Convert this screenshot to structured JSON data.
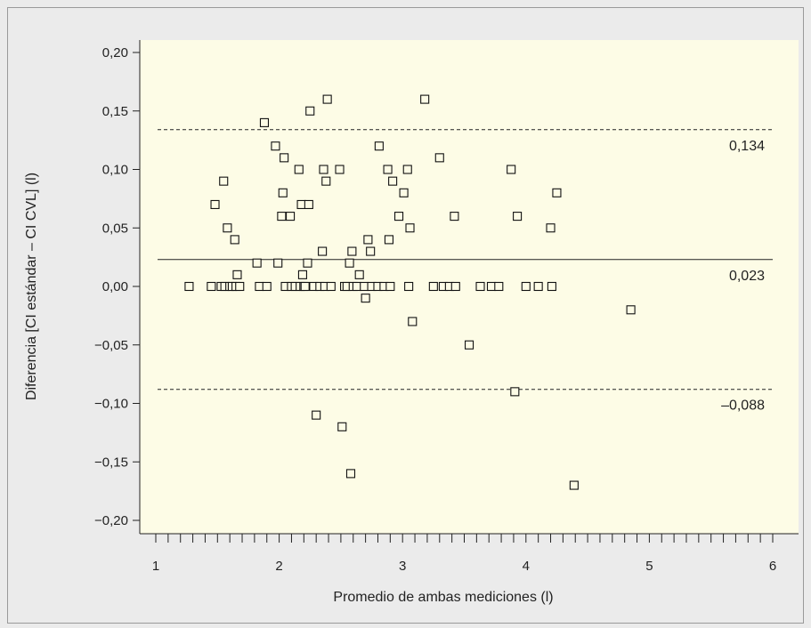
{
  "chart_data": {
    "type": "scatter",
    "title": "",
    "xlabel": "Promedio de ambas mediciones (l)",
    "ylabel": "Diferencia [CI estándar – CI CVL] (l)",
    "xlim": [
      1,
      6
    ],
    "ylim": [
      -0.21,
      0.21
    ],
    "xticks": [
      1,
      2,
      3,
      4,
      5,
      6
    ],
    "xtick_labels": [
      "1",
      "2",
      "3",
      "4",
      "5",
      "6"
    ],
    "yticks": [
      -0.2,
      -0.15,
      -0.1,
      -0.05,
      0.0,
      0.05,
      0.1,
      0.15,
      0.2
    ],
    "ytick_labels": [
      "−0,20",
      "−0,15",
      "−0,10",
      "−0,05",
      "0,00",
      "0,05",
      "0,10",
      "0,15",
      "0,20"
    ],
    "grid": false,
    "reference_lines": [
      {
        "value": 0.134,
        "label": "0,134",
        "style": "dashed"
      },
      {
        "value": 0.023,
        "label": "0,023",
        "style": "solid"
      },
      {
        "value": -0.088,
        "label": "–0,088",
        "style": "dashed"
      }
    ],
    "colors": {
      "plot_background": "#fdfce6",
      "frame_background": "#ebebeb",
      "marker_stroke": "#111111"
    },
    "points": [
      [
        1.27,
        0.0
      ],
      [
        1.45,
        0.0
      ],
      [
        1.48,
        0.07
      ],
      [
        1.53,
        0.0
      ],
      [
        1.55,
        0.09
      ],
      [
        1.56,
        0.0
      ],
      [
        1.58,
        0.05
      ],
      [
        1.6,
        0.0
      ],
      [
        1.62,
        0.0
      ],
      [
        1.64,
        0.04
      ],
      [
        1.65,
        0.0
      ],
      [
        1.66,
        0.01
      ],
      [
        1.68,
        0.0
      ],
      [
        1.82,
        0.02
      ],
      [
        1.84,
        0.0
      ],
      [
        1.88,
        0.14
      ],
      [
        1.9,
        0.0
      ],
      [
        1.97,
        0.12
      ],
      [
        1.99,
        0.02
      ],
      [
        2.02,
        0.06
      ],
      [
        2.03,
        0.08
      ],
      [
        2.04,
        0.11
      ],
      [
        2.05,
        0.0
      ],
      [
        2.09,
        0.06
      ],
      [
        2.1,
        0.0
      ],
      [
        2.13,
        0.0
      ],
      [
        2.16,
        0.1
      ],
      [
        2.17,
        0.0
      ],
      [
        2.18,
        0.07
      ],
      [
        2.19,
        0.01
      ],
      [
        2.2,
        0.0
      ],
      [
        2.21,
        0.0
      ],
      [
        2.23,
        0.02
      ],
      [
        2.24,
        0.07
      ],
      [
        2.25,
        0.15
      ],
      [
        2.28,
        0.0
      ],
      [
        2.3,
        -0.11
      ],
      [
        2.33,
        0.0
      ],
      [
        2.35,
        0.03
      ],
      [
        2.36,
        0.1
      ],
      [
        2.37,
        0.0
      ],
      [
        2.38,
        0.09
      ],
      [
        2.39,
        0.16
      ],
      [
        2.42,
        0.0
      ],
      [
        2.49,
        0.1
      ],
      [
        2.51,
        -0.12
      ],
      [
        2.53,
        0.0
      ],
      [
        2.55,
        0.0
      ],
      [
        2.57,
        0.02
      ],
      [
        2.58,
        -0.16
      ],
      [
        2.59,
        0.03
      ],
      [
        2.6,
        0.0
      ],
      [
        2.63,
        0.0
      ],
      [
        2.65,
        0.01
      ],
      [
        2.69,
        0.0
      ],
      [
        2.7,
        -0.01
      ],
      [
        2.72,
        0.04
      ],
      [
        2.74,
        0.03
      ],
      [
        2.75,
        0.0
      ],
      [
        2.8,
        0.0
      ],
      [
        2.81,
        0.12
      ],
      [
        2.85,
        0.0
      ],
      [
        2.88,
        0.1
      ],
      [
        2.89,
        0.04
      ],
      [
        2.9,
        0.0
      ],
      [
        2.92,
        0.09
      ],
      [
        2.97,
        0.06
      ],
      [
        3.01,
        0.08
      ],
      [
        3.04,
        0.1
      ],
      [
        3.05,
        0.0
      ],
      [
        3.06,
        0.05
      ],
      [
        3.08,
        -0.03
      ],
      [
        3.18,
        0.16
      ],
      [
        3.25,
        0.0
      ],
      [
        3.3,
        0.11
      ],
      [
        3.33,
        0.0
      ],
      [
        3.38,
        0.0
      ],
      [
        3.42,
        0.06
      ],
      [
        3.43,
        0.0
      ],
      [
        3.54,
        -0.05
      ],
      [
        3.63,
        0.0
      ],
      [
        3.72,
        0.0
      ],
      [
        3.78,
        0.0
      ],
      [
        3.88,
        0.1
      ],
      [
        3.91,
        -0.09
      ],
      [
        3.93,
        0.06
      ],
      [
        4.0,
        0.0
      ],
      [
        4.1,
        0.0
      ],
      [
        4.2,
        0.05
      ],
      [
        4.21,
        0.0
      ],
      [
        4.25,
        0.08
      ],
      [
        4.39,
        -0.17
      ],
      [
        4.85,
        -0.02
      ]
    ]
  }
}
